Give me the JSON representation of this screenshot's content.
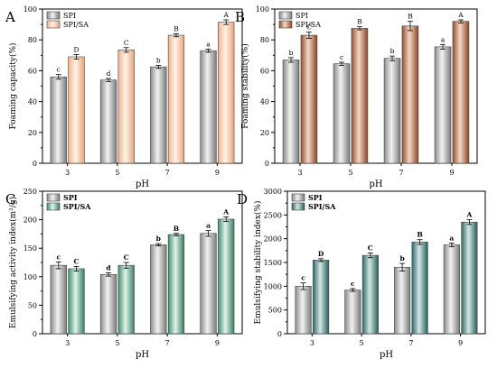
{
  "chart_data": [
    {
      "type": "bar",
      "panel_label": "A",
      "categories": [
        "3",
        "5",
        "7",
        "9"
      ],
      "xlabel": "pH",
      "ylabel": "Foaming capacity(%)",
      "ylim": [
        0,
        100
      ],
      "yticks": [
        "0",
        "20",
        "40",
        "60",
        "80",
        "100"
      ],
      "legend": "top-left",
      "series": [
        {
          "name": "SPI",
          "values": [
            56,
            54,
            62.5,
            73
          ],
          "errors": [
            1.5,
            1,
            1,
            1
          ],
          "letters": [
            "c",
            "d",
            "b",
            "a"
          ],
          "color": "#a8a8a8"
        },
        {
          "name": "SPI/SA",
          "values": [
            69,
            73.5,
            83,
            91.5
          ],
          "errors": [
            1.5,
            1.5,
            1,
            1.5
          ],
          "letters": [
            "D",
            "C",
            "B",
            "A"
          ],
          "color": "#f6c8a4"
        }
      ]
    },
    {
      "type": "bar",
      "panel_label": "B",
      "categories": [
        "3",
        "5",
        "7",
        "9"
      ],
      "xlabel": "pH",
      "ylabel": "Foaming stability(%)",
      "ylim": [
        0,
        100
      ],
      "yticks": [
        "0",
        "20",
        "40",
        "60",
        "80",
        "100"
      ],
      "legend": "top-left",
      "series": [
        {
          "name": "SPI",
          "values": [
            67,
            64.5,
            68,
            75.5
          ],
          "errors": [
            1.5,
            1,
            1.5,
            1.5
          ],
          "letters": [
            "b",
            "c",
            "b",
            "a"
          ],
          "color": "#a8a8a8"
        },
        {
          "name": "SPI/SA",
          "values": [
            83,
            87.5,
            89,
            92
          ],
          "errors": [
            2,
            1,
            3,
            1
          ],
          "letters": [
            "C",
            "B",
            "B",
            "A"
          ],
          "color": "#b86a42"
        }
      ]
    },
    {
      "type": "bar",
      "panel_label": "C",
      "categories": [
        "3",
        "5",
        "7",
        "9"
      ],
      "xlabel": "pH",
      "ylabel": "Emulsifying activity index(m²/g)",
      "ylim": [
        0,
        250
      ],
      "yticks": [
        "0",
        "50",
        "100",
        "150",
        "200",
        "250"
      ],
      "legend": "top-left",
      "series": [
        {
          "name": "SPI",
          "values": [
            120,
            104,
            156,
            176
          ],
          "errors": [
            6,
            3,
            2,
            5
          ],
          "letters": [
            "c",
            "d",
            "b",
            "a"
          ],
          "color": "#a8a8a8"
        },
        {
          "name": "SPI/SA",
          "values": [
            114,
            120,
            174,
            201
          ],
          "errors": [
            4,
            5,
            2,
            4
          ],
          "letters": [
            "C",
            "C",
            "B",
            "A"
          ],
          "color": "#5ea88a"
        }
      ]
    },
    {
      "type": "bar",
      "panel_label": "D",
      "categories": [
        "3",
        "5",
        "7",
        "9"
      ],
      "xlabel": "pH",
      "ylabel": "Emulsifying stability index(%)",
      "ylim": [
        0,
        3000
      ],
      "yticks": [
        "0",
        "500",
        "1000",
        "1500",
        "2000",
        "2500",
        "3000"
      ],
      "legend": "top-left",
      "series": [
        {
          "name": "SPI",
          "values": [
            1000,
            920,
            1400,
            1870
          ],
          "errors": [
            70,
            30,
            80,
            40
          ],
          "letters": [
            "c",
            "c",
            "b",
            "a"
          ],
          "color": "#a8a8a8"
        },
        {
          "name": "SPI/SA",
          "values": [
            1550,
            1650,
            1930,
            2350
          ],
          "errors": [
            30,
            50,
            50,
            50
          ],
          "letters": [
            "D",
            "C",
            "B",
            "A"
          ],
          "color": "#3f7d78"
        }
      ]
    }
  ]
}
